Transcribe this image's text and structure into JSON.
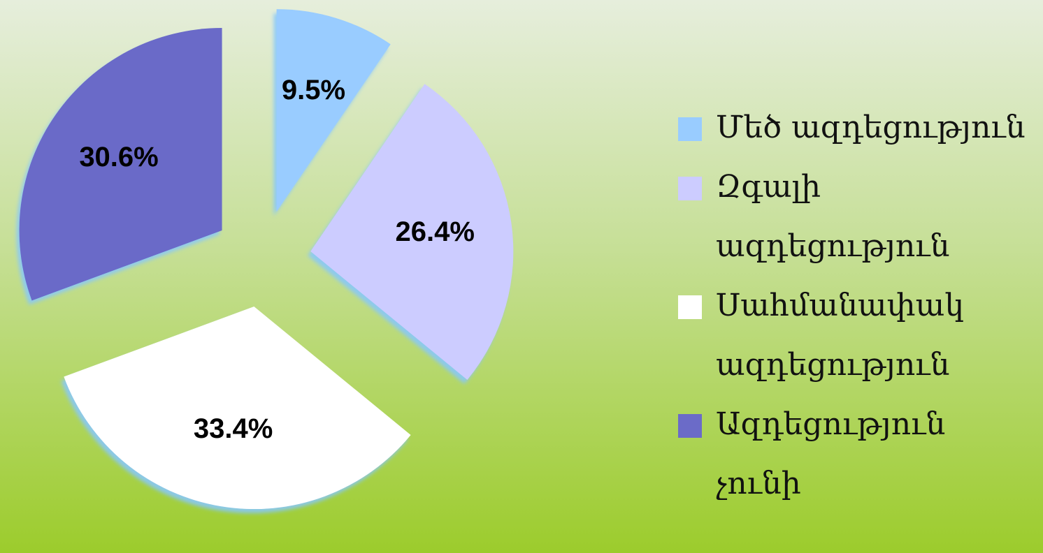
{
  "chart_data": {
    "type": "pie",
    "categories": [
      "Մեծ ազդեցություն",
      "Զգալի ազդեցություն",
      "Սահմանափակ ազդեցություն",
      "Ազդեցություն չունի"
    ],
    "values": [
      9.5,
      26.4,
      33.4,
      30.6
    ],
    "value_labels": [
      "9.5%",
      "26.4%",
      "33.4%",
      "30.6%"
    ],
    "colors": [
      "#99ccff",
      "#ccccff",
      "#ffffff",
      "#6b6bc8"
    ],
    "legend": "right"
  }
}
